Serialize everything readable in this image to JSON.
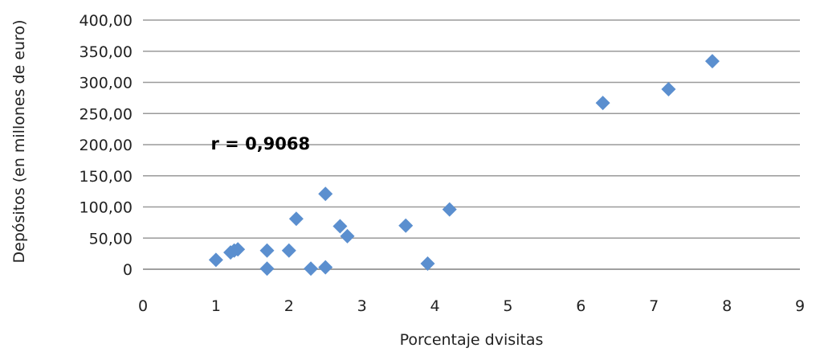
{
  "chart_data": {
    "type": "scatter",
    "title": "",
    "xlabel": "Porcentaje dvisitas",
    "ylabel": "Depósitos (en millones de euro)",
    "xlim": [
      0,
      9
    ],
    "ylim": [
      0,
      400
    ],
    "x_ticks": [
      "0",
      "1",
      "2",
      "3",
      "4",
      "5",
      "6",
      "7",
      "8",
      "9"
    ],
    "y_ticks": [
      "0",
      "50,00",
      "100,00",
      "150,00",
      "200,00",
      "250,00",
      "300,00",
      "350,00",
      "400,00"
    ],
    "grid": "horizontal",
    "legend": "none",
    "marker": "diamond",
    "color": "#5b8fcf",
    "annotation": "r = 0,9068",
    "points": [
      {
        "x": 1.0,
        "y": 15
      },
      {
        "x": 1.2,
        "y": 27
      },
      {
        "x": 1.25,
        "y": 30
      },
      {
        "x": 1.3,
        "y": 32
      },
      {
        "x": 1.7,
        "y": 1
      },
      {
        "x": 1.7,
        "y": 30
      },
      {
        "x": 2.0,
        "y": 30
      },
      {
        "x": 2.1,
        "y": 81
      },
      {
        "x": 2.3,
        "y": 1
      },
      {
        "x": 2.5,
        "y": 3
      },
      {
        "x": 2.5,
        "y": 121
      },
      {
        "x": 2.7,
        "y": 69
      },
      {
        "x": 2.8,
        "y": 53
      },
      {
        "x": 3.6,
        "y": 70
      },
      {
        "x": 3.9,
        "y": 9
      },
      {
        "x": 4.2,
        "y": 96
      },
      {
        "x": 6.3,
        "y": 267
      },
      {
        "x": 7.2,
        "y": 289
      },
      {
        "x": 7.8,
        "y": 334
      }
    ]
  }
}
